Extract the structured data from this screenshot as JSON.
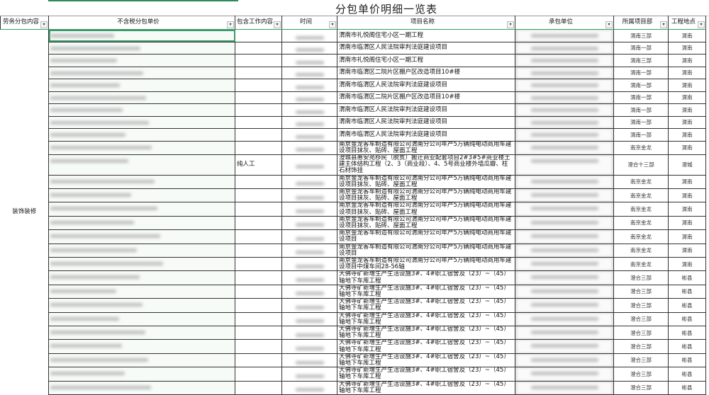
{
  "sheet": {
    "title": "分包单价明细一览表",
    "accent_color": "#3a9a6a",
    "filter_icon": "dropdown-filter-icon",
    "headers": [
      "劳务分包内容",
      "不含税分包单价",
      "包含工作内容",
      "时间",
      "项目名称",
      "承包单位",
      "所属项目部",
      "工程地点"
    ],
    "category": "装饰装修",
    "rows": [
      {
        "work": "",
        "project": "渭南市礼悦阁住宅小区一期工程",
        "dept": "渭南三部",
        "location": "渭南"
      },
      {
        "work": "",
        "project": "渭南市临渭区人民法院审判法庭建设项目",
        "dept": "渭南一部",
        "location": "渭南"
      },
      {
        "work": "",
        "project": "渭南市礼悦阁住宅小区一期工程",
        "dept": "渭南三部",
        "location": "渭南"
      },
      {
        "work": "",
        "project": "渭南市临渭区二院片区棚户区改造项目10#楼",
        "dept": "渭南一部",
        "location": "渭南"
      },
      {
        "work": "",
        "project": "渭南市临渭区人民法院审判法庭建设项目",
        "dept": "渭南一部",
        "location": "渭南"
      },
      {
        "work": "",
        "project": "渭南市临渭区二院片区棚户区改造项目10#楼",
        "dept": "渭南一部",
        "location": "渭南"
      },
      {
        "work": "",
        "project": "渭南市临渭区人民法院审判法庭建设项目",
        "dept": "渭南一部",
        "location": "渭南"
      },
      {
        "work": "",
        "project": "渭南市临渭区人民法院审判法庭建设项目",
        "dept": "渭南一部",
        "location": "渭南"
      },
      {
        "work": "",
        "project": "渭南市临渭区人民法院审判法庭建设项目",
        "dept": "渭南一部",
        "location": "渭南"
      },
      {
        "work": "",
        "project": "南京金龙客车制造有限公司渭南分公司年产5万辆纯电动商用车建设项目抹灰、贴砖、屋面工程",
        "dept": "南京金龙",
        "location": "渭南"
      },
      {
        "work": "纯人工",
        "project": "澄城县惠安苑移民（脱贫）搬迁商业配套项目2#3#5#商业楼土建主体结构工程（2、3（商业段）、4、5号商业楼外墙瓜瓣、柱石材饰挂",
        "dept": "澄合十三部",
        "location": "澄城"
      },
      {
        "work": "",
        "project": "南京金龙客车制造有限公司渭南分公司年产5万辆纯电动商用车建设项目抹灰、贴砖、屋面工程",
        "dept": "南京金龙",
        "location": "渭南"
      },
      {
        "work": "",
        "project": "南京金龙客车制造有限公司渭南分公司年产5万辆纯电动商用车建设项目抹灰、贴砖、屋面工程",
        "dept": "南京金龙",
        "location": "渭南"
      },
      {
        "work": "",
        "project": "南京金龙客车制造有限公司渭南分公司年产5万辆纯电动商用车建设项目抹灰、贴砖、屋面工程",
        "dept": "南京金龙",
        "location": "渭南"
      },
      {
        "work": "",
        "project": "南京金龙客车制造有限公司渭南分公司年产5万辆纯电动商用车建设项目抹灰、贴砖、屋面工程",
        "dept": "南京金龙",
        "location": "渭南"
      },
      {
        "work": "",
        "project": "南京金龙客车制造有限公司渭南分公司年产5万辆纯电动商用车建设项目",
        "dept": "南京金龙",
        "location": "渭南"
      },
      {
        "work": "",
        "project": "南京金龙客车制造有限公司渭南分公司年产5万辆纯电动商用车建设项目",
        "dept": "南京金龙",
        "location": "渭南"
      },
      {
        "work": "",
        "project": "南京金龙客车制造有限公司渭南分公司年产5万辆纯电动商用车建设项目中煤车间28-56轴",
        "dept": "南京金龙",
        "location": "渭南"
      },
      {
        "work": "",
        "project": "大佛寺矿新增生产生活设施3#、4#职工宿舍及（23）~（45）轴地下车库工程",
        "dept": "澄合三部",
        "location": "彬县"
      },
      {
        "work": "",
        "project": "大佛寺矿新增生产生活设施3#、4#职工宿舍及（23）~（45）轴地下车库工程",
        "dept": "澄合三部",
        "location": "彬县"
      },
      {
        "work": "",
        "project": "大佛寺矿新增生产生活设施3#、4#职工宿舍及（23）~（45）轴地下车库工程",
        "dept": "澄合三部",
        "location": "彬县"
      },
      {
        "work": "",
        "project": "大佛寺矿新增生产生活设施3#、4#职工宿舍及（23）~（45）轴地下车库工程",
        "dept": "澄合三部",
        "location": "彬县"
      },
      {
        "work": "",
        "project": "大佛寺矿新增生产生活设施3#、4#职工宿舍及（23）~（45）轴地下车库工程",
        "dept": "澄合三部",
        "location": "彬县"
      },
      {
        "work": "",
        "project": "大佛寺矿新增生产生活设施3#、4#职工宿舍及（23）~（45）轴地下车库工程",
        "dept": "澄合三部",
        "location": "彬县"
      },
      {
        "work": "",
        "project": "大佛寺矿新增生产生活设施3#、4#职工宿舍及（23）~（45）轴地下车库工程",
        "dept": "澄合三部",
        "location": "彬县"
      },
      {
        "work": "",
        "project": "大佛寺矿新增生产生活设施3#、4#职工宿舍及（23）~（45）轴地下车库工程",
        "dept": "澄合三部",
        "location": "彬县"
      },
      {
        "work": "",
        "project": "大佛寺矿新增生产生活设施3#、4#职工宿舍及（23）~（45）轴地下车库工程",
        "dept": "澄合三部",
        "location": "彬县"
      }
    ]
  }
}
